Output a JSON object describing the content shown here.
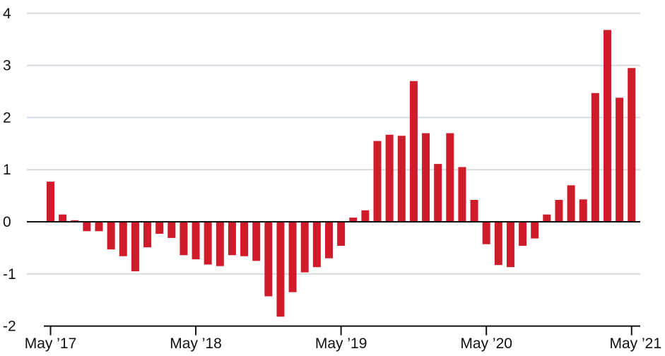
{
  "chart_data": {
    "type": "bar",
    "title": "",
    "xlabel": "",
    "ylabel": "",
    "ylim": [
      -2,
      4
    ],
    "yticks": [
      4,
      3,
      2,
      1,
      0,
      -1,
      -2
    ],
    "xtick_labels": [
      "May ’17",
      "May ’18",
      "May ’19",
      "May ’20",
      "May ’21"
    ],
    "xtick_indices": [
      0,
      12,
      24,
      36,
      48
    ],
    "grid": true,
    "bar_color": "#d01c2a",
    "series": [
      {
        "values": [
          0.77,
          0.14,
          0.03,
          -0.18,
          -0.18,
          -0.53,
          -0.66,
          -0.95,
          -0.49,
          -0.23,
          -0.31,
          -0.64,
          -0.72,
          -0.82,
          -0.85,
          -0.64,
          -0.66,
          -0.75,
          -1.43,
          -1.82,
          -1.35,
          -0.97,
          -0.87,
          -0.7,
          -0.46,
          0.08,
          0.22,
          1.55,
          1.67,
          1.65,
          2.7,
          1.7,
          1.11,
          1.7,
          1.05,
          0.42,
          -0.43,
          -0.83,
          -0.87,
          -0.46,
          -0.32,
          0.14,
          0.42,
          0.7,
          0.43,
          2.47,
          3.68,
          2.38,
          2.95
        ]
      }
    ]
  }
}
